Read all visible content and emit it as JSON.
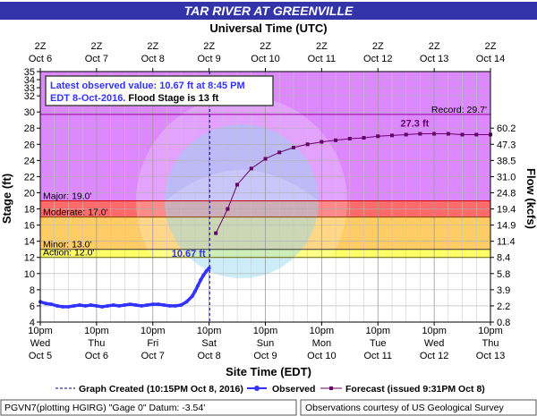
{
  "title": "TAR RIVER AT GREENVILLE",
  "top_axis_title": "Universal Time (UTC)",
  "top_ticks": [
    {
      "hours": "2Z",
      "date": "Oct  6"
    },
    {
      "hours": "2Z",
      "date": "Oct  7"
    },
    {
      "hours": "2Z",
      "date": "Oct  8"
    },
    {
      "hours": "2Z",
      "date": "Oct  9"
    },
    {
      "hours": "2Z",
      "date": "Oct 10"
    },
    {
      "hours": "2Z",
      "date": "Oct 11"
    },
    {
      "hours": "2Z",
      "date": "Oct 12"
    },
    {
      "hours": "2Z",
      "date": "Oct 13"
    },
    {
      "hours": "2Z",
      "date": "Oct 14"
    }
  ],
  "bottom_axis_title": "Site Time (EDT)",
  "bottom_ticks": [
    {
      "time": "10pm",
      "day": "Wed",
      "date": "Oct 5"
    },
    {
      "time": "10pm",
      "day": "Thu",
      "date": "Oct 6"
    },
    {
      "time": "10pm",
      "day": "Fri",
      "date": "Oct 7"
    },
    {
      "time": "10pm",
      "day": "Sat",
      "date": "Oct 8"
    },
    {
      "time": "10pm",
      "day": "Sun",
      "date": "Oct 9"
    },
    {
      "time": "10pm",
      "day": "Mon",
      "date": "Oct 10"
    },
    {
      "time": "10pm",
      "day": "Tue",
      "date": "Oct 11"
    },
    {
      "time": "10pm",
      "day": "Wed",
      "date": "Oct 12"
    },
    {
      "time": "10pm",
      "day": "Thu",
      "date": "Oct 13"
    }
  ],
  "info_box": {
    "line1": "Latest observed value: 10.67 ft at 8:45 PM",
    "line2a": "EDT 8-Oct-2016.",
    "line2b": " Flood Stage is 13 ft"
  },
  "footer": {
    "left": "PGVN7(plotting HGIRG) \"Gage 0\" Datum: -3.54'",
    "right": "Observations courtesy of US Geological Survey"
  },
  "legend": {
    "created": "Graph Created (10:15PM Oct 8, 2016)",
    "observed": "Observed",
    "forecast": "Forecast (issued 9:31PM Oct 8)"
  },
  "colors": {
    "title_bg": "#3333aa",
    "major": "#ff6a6a",
    "moderate": "#ff9999",
    "minor": "#ffcc66",
    "action": "#ffff66",
    "record_zone": "#dd88ff",
    "observed": "#3333ff",
    "forecast": "#660066",
    "record_line": "#990099"
  },
  "chart_data": {
    "type": "line",
    "xlabel_bottom": "Site Time (EDT)",
    "xlabel_top": "Universal Time (UTC)",
    "ylabel": "Stage (ft)",
    "y2label": "Flow (kcfs)",
    "ylim": [
      4,
      35
    ],
    "y_ticks": [
      4,
      6,
      8,
      10,
      12,
      14,
      16,
      18,
      20,
      22,
      24,
      26,
      28,
      30,
      32,
      33,
      34,
      35
    ],
    "flow_ticks": [
      {
        "stage": 4,
        "label": "0.8"
      },
      {
        "stage": 6,
        "label": "2.2"
      },
      {
        "stage": 8,
        "label": "3.9"
      },
      {
        "stage": 10,
        "label": "5.8"
      },
      {
        "stage": 12,
        "label": "8.4"
      },
      {
        "stage": 14,
        "label": "11.4"
      },
      {
        "stage": 16,
        "label": "14.9"
      },
      {
        "stage": 18,
        "label": "19.4"
      },
      {
        "stage": 20,
        "label": "24.8"
      },
      {
        "stage": 22,
        "label": "31.0"
      },
      {
        "stage": 24,
        "label": "38.5"
      },
      {
        "stage": 26,
        "label": "47.3"
      },
      {
        "stage": 28,
        "label": "60.2"
      }
    ],
    "x_range_days": [
      "Oct 5 10pm",
      "Oct 13 10pm"
    ],
    "grid": true,
    "thresholds": [
      {
        "name": "Record",
        "label": "Record: 29.7'",
        "stage": 29.7
      },
      {
        "name": "Major",
        "label": "Major: 19.0'",
        "stage": 19.0
      },
      {
        "name": "Moderate",
        "label": "Moderate: 17.0'",
        "stage": 17.0
      },
      {
        "name": "Minor",
        "label": "Minor: 13.0'",
        "stage": 13.0
      },
      {
        "name": "Action",
        "label": "Action: 12.0'",
        "stage": 12.0
      }
    ],
    "graph_created_day": 3.01,
    "series": [
      {
        "name": "Observed",
        "x_days": [
          0.0,
          0.1,
          0.2,
          0.3,
          0.4,
          0.5,
          0.6,
          0.7,
          0.8,
          0.9,
          1.0,
          1.1,
          1.2,
          1.3,
          1.4,
          1.5,
          1.6,
          1.7,
          1.8,
          1.9,
          2.0,
          2.1,
          2.2,
          2.3,
          2.4,
          2.5,
          2.6,
          2.7,
          2.75,
          2.8,
          2.85,
          2.9,
          2.95,
          3.0
        ],
        "stage": [
          6.5,
          6.3,
          6.2,
          6.0,
          5.9,
          5.9,
          6.0,
          6.1,
          6.0,
          6.1,
          6.0,
          5.9,
          6.0,
          6.1,
          6.0,
          6.1,
          6.2,
          6.1,
          6.0,
          6.1,
          6.2,
          6.2,
          6.1,
          6.0,
          6.0,
          6.1,
          6.5,
          7.2,
          7.8,
          8.5,
          9.2,
          9.8,
          10.3,
          10.67
        ],
        "point_label": "10.67 ft"
      },
      {
        "name": "Forecast",
        "x_days": [
          3.12,
          3.33,
          3.5,
          3.75,
          4.0,
          4.25,
          4.5,
          4.75,
          5.0,
          5.25,
          5.5,
          5.75,
          6.0,
          6.25,
          6.5,
          6.75,
          7.0,
          7.25,
          7.5,
          7.75,
          8.0
        ],
        "stage": [
          15.0,
          18.0,
          21.0,
          23.0,
          24.2,
          25.0,
          25.6,
          26.0,
          26.3,
          26.5,
          26.7,
          26.8,
          27.0,
          27.1,
          27.2,
          27.3,
          27.3,
          27.3,
          27.2,
          27.2,
          27.2
        ],
        "crest_label": "27.3 ft"
      }
    ]
  }
}
